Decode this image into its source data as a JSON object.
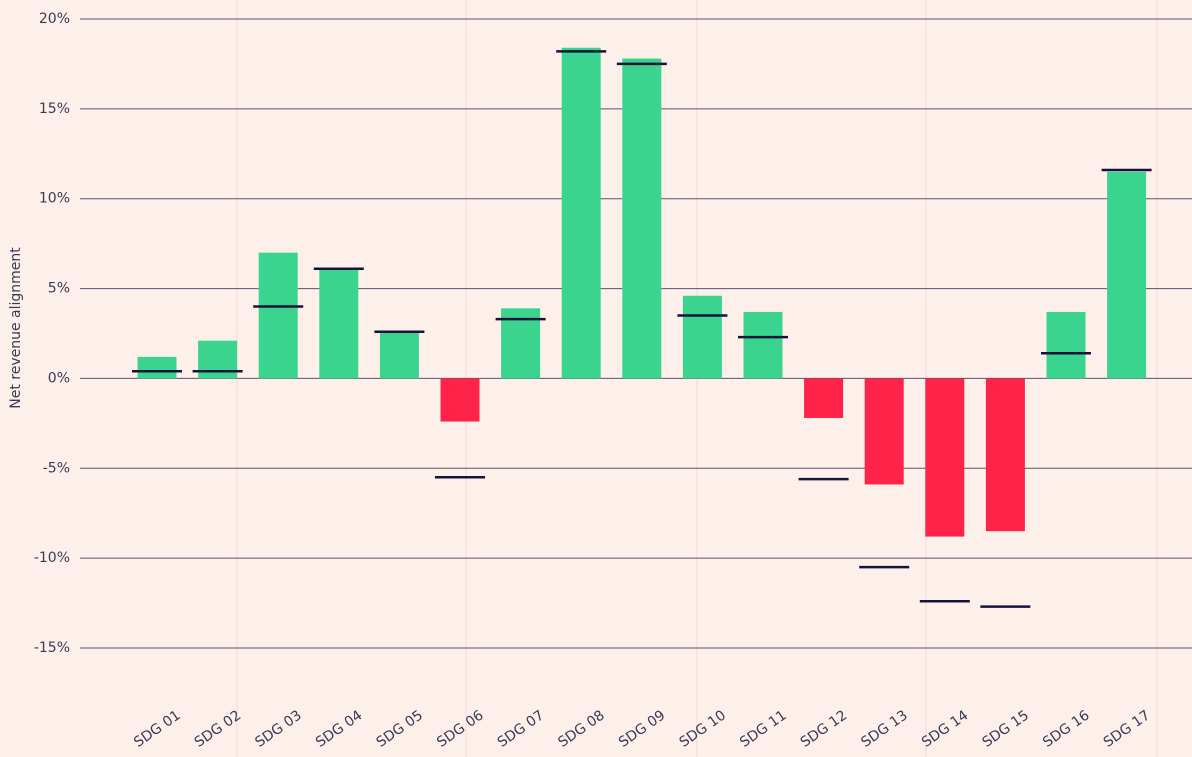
{
  "chart_data": {
    "type": "bar",
    "y_label": "Net revenue alignment",
    "categories": [
      "SDG 01",
      "SDG 02",
      "SDG 03",
      "SDG 04",
      "SDG 05",
      "SDG 06",
      "SDG 07",
      "SDG 08",
      "SDG 09",
      "SDG 10",
      "SDG 11",
      "SDG 12",
      "SDG 13",
      "SDG 14",
      "SDG 15",
      "SDG 16",
      "SDG 17"
    ],
    "values": [
      1.2,
      2.1,
      7.0,
      6.1,
      2.6,
      -2.4,
      3.9,
      18.4,
      17.8,
      4.6,
      3.7,
      -2.2,
      -5.9,
      -8.8,
      -8.5,
      3.7,
      11.5
    ],
    "positive_color": "#3ad48f",
    "negative_color": "#ff2249",
    "markers": {
      "color": "#14143a",
      "values": [
        0.4,
        0.4,
        4.0,
        6.1,
        2.6,
        -5.5,
        3.3,
        18.2,
        17.5,
        3.5,
        2.3,
        -5.6,
        -10.5,
        -12.4,
        -12.7,
        1.4,
        11.6
      ]
    },
    "ylim": [
      -15,
      20
    ],
    "yticks": [
      {
        "value": -15,
        "label": "-15%"
      },
      {
        "value": -10,
        "label": "-10%"
      },
      {
        "value": -5,
        "label": "-5%"
      },
      {
        "value": 0,
        "label": "0%"
      },
      {
        "value": 5,
        "label": "5%"
      },
      {
        "value": 10,
        "label": "10%"
      },
      {
        "value": 15,
        "label": "15%"
      },
      {
        "value": 20,
        "label": "20%"
      }
    ],
    "grid": true
  }
}
